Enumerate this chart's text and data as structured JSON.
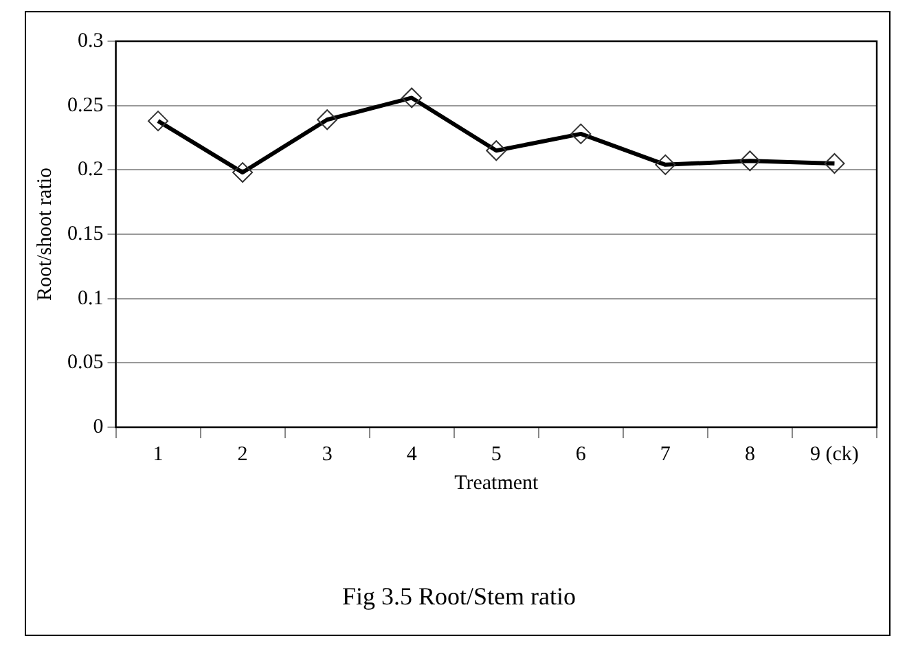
{
  "chart_data": {
    "type": "line",
    "xlabel": "Treatment",
    "ylabel": "Root/shoot ratio",
    "categories": [
      "1",
      "2",
      "3",
      "4",
      "5",
      "6",
      "7",
      "8",
      "9 (ck)"
    ],
    "series": [
      {
        "color": "#000000",
        "values": [
          0.238,
          0.198,
          0.239,
          0.256,
          0.215,
          0.228,
          0.204,
          0.207,
          0.205
        ]
      }
    ],
    "ylim": [
      0,
      0.3
    ],
    "yticks": [
      0,
      0.05,
      0.1,
      0.15,
      0.2,
      0.25,
      0.3
    ],
    "grid": "y",
    "legend": false,
    "marker": "diamond",
    "line_style": "solid",
    "annotations": [
      "Fig 3.5 Root/Stem ratio"
    ]
  }
}
